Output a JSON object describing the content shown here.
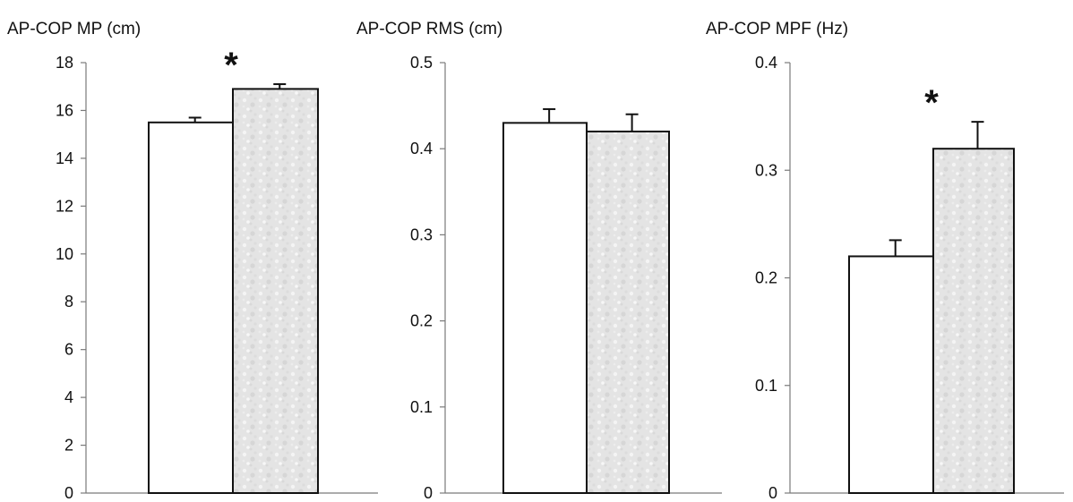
{
  "chart_data": [
    {
      "type": "bar",
      "title": "AP-COP MP (cm)",
      "xlabel": "",
      "ylabel": "",
      "ylim": [
        0,
        18
      ],
      "yticks": [
        0,
        2,
        4,
        6,
        8,
        10,
        12,
        14,
        16,
        18
      ],
      "grid": false,
      "series": [
        {
          "fill_color": "#ffffff",
          "values": [
            15.5
          ],
          "errors": [
            0.2
          ]
        },
        {
          "fill_color": "#e3e3e3",
          "values": [
            16.9
          ],
          "errors": [
            0.2
          ]
        }
      ],
      "annotations": [
        {
          "text": "*",
          "series_index": 1
        }
      ]
    },
    {
      "type": "bar",
      "title": "AP-COP RMS (cm)",
      "xlabel": "",
      "ylabel": "",
      "ylim": [
        0,
        0.5
      ],
      "yticks": [
        0,
        0.1,
        0.2,
        0.3,
        0.4,
        0.5
      ],
      "grid": false,
      "series": [
        {
          "fill_color": "#ffffff",
          "values": [
            0.43
          ],
          "errors": [
            0.016
          ]
        },
        {
          "fill_color": "#e3e3e3",
          "values": [
            0.42
          ],
          "errors": [
            0.02
          ]
        }
      ],
      "annotations": []
    },
    {
      "type": "bar",
      "title": "AP-COP MPF (Hz)",
      "xlabel": "",
      "ylabel": "",
      "ylim": [
        0,
        0.4
      ],
      "yticks": [
        0,
        0.1,
        0.2,
        0.3,
        0.4
      ],
      "grid": false,
      "series": [
        {
          "fill_color": "#ffffff",
          "values": [
            0.22
          ],
          "errors": [
            0.015
          ]
        },
        {
          "fill_color": "#e3e3e3",
          "values": [
            0.32
          ],
          "errors": [
            0.025
          ]
        }
      ],
      "annotations": [
        {
          "text": "*",
          "series_index": 1
        }
      ]
    }
  ]
}
